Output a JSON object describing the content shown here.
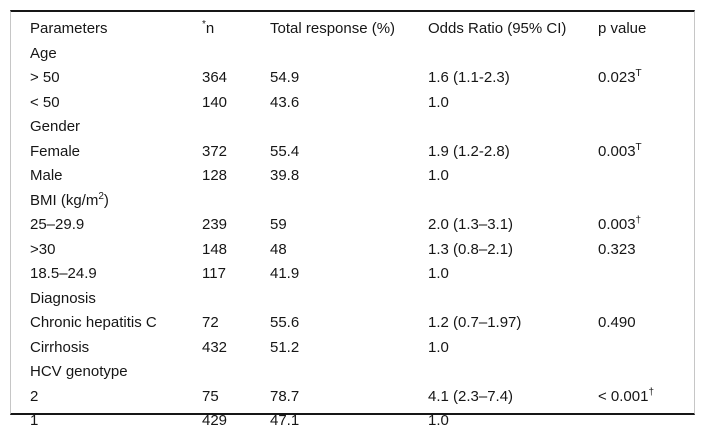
{
  "table": {
    "header": [
      "Parameters",
      "^{*}n",
      "Total response (%)",
      "Odds Ratio (95% CI)",
      "p value"
    ],
    "column_names": [
      "parameter",
      "n",
      "total_response_pct",
      "odds_ratio_95ci",
      "p_value"
    ],
    "rows": [
      {
        "type": "section",
        "cells": [
          "Age",
          "",
          "",
          "",
          ""
        ]
      },
      {
        "type": "data",
        "cells": [
          "> 50",
          "364",
          "54.9",
          "1.6 (1.1-2.3)",
          "0.023^{T}"
        ]
      },
      {
        "type": "data",
        "cells": [
          "< 50",
          "140",
          "43.6",
          "1.0",
          ""
        ]
      },
      {
        "type": "section",
        "cells": [
          "Gender",
          "",
          "",
          "",
          ""
        ]
      },
      {
        "type": "data",
        "cells": [
          "Female",
          "372",
          "55.4",
          "1.9 (1.2-2.8)",
          "0.003^{T}"
        ]
      },
      {
        "type": "data",
        "cells": [
          "Male",
          "128",
          "39.8",
          "1.0",
          ""
        ]
      },
      {
        "type": "section",
        "cells": [
          "BMI (kg/m^{2})",
          "",
          "",
          "",
          ""
        ]
      },
      {
        "type": "data",
        "cells": [
          "25–29.9",
          "239",
          "59",
          "2.0 (1.3–3.1)",
          "0.003^{†}"
        ]
      },
      {
        "type": "data",
        "cells": [
          ">30",
          "148",
          "48",
          "1.3 (0.8–2.1)",
          "0.323"
        ]
      },
      {
        "type": "data",
        "cells": [
          "18.5–24.9",
          "117",
          "41.9",
          "1.0",
          ""
        ]
      },
      {
        "type": "section",
        "cells": [
          "Diagnosis",
          "",
          "",
          "",
          ""
        ]
      },
      {
        "type": "data",
        "cells": [
          "Chronic hepatitis C",
          "72",
          "55.6",
          "1.2 (0.7–1.97)",
          "0.490"
        ]
      },
      {
        "type": "data",
        "cells": [
          "Cirrhosis",
          "432",
          "51.2",
          "1.0",
          ""
        ]
      },
      {
        "type": "section",
        "cells": [
          "HCV genotype",
          "",
          "",
          "",
          ""
        ]
      },
      {
        "type": "data",
        "cells": [
          "2",
          "75",
          "78.7",
          "4.1 (2.3–7.4)",
          "< 0.001^{†}"
        ]
      },
      {
        "type": "data",
        "cells": [
          "1",
          "429",
          "47.1",
          "1.0",
          ""
        ]
      }
    ],
    "colors": {
      "rule": "#161616",
      "frame_border": "#c6c6c6",
      "text": "#161616",
      "background": "#ffffff"
    }
  }
}
